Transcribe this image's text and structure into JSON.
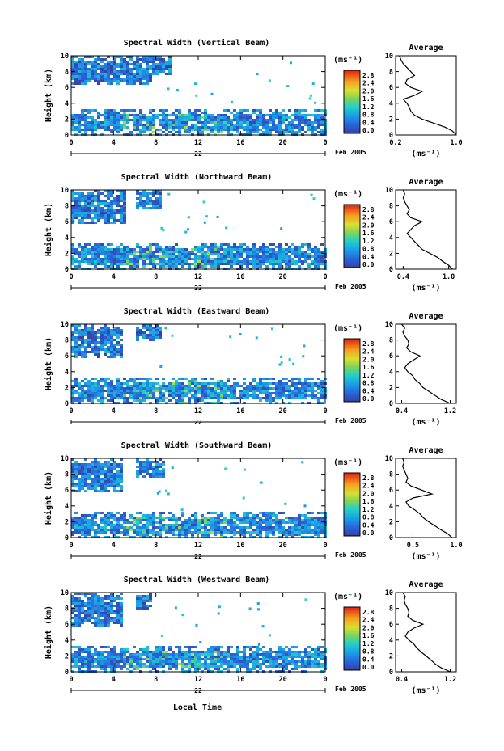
{
  "figure": {
    "common": {
      "ylabel": "Height (km)",
      "unit_label": "(ms⁻¹)",
      "avg_title": "Average",
      "avg_xlabel": "(ms⁻¹)",
      "date_day": "22",
      "date_label": "Feb 2005",
      "xlabel_bottom": "Local Time"
    },
    "colorbar_ticks": [
      "2.8",
      "2.4",
      "2.0",
      "1.6",
      "1.2",
      "0.8",
      "0.4",
      "0.0"
    ]
  },
  "chart_data": [
    {
      "type": "heatmap",
      "title": "Spectral Width (Vertical Beam)",
      "x_ticks": [
        "0",
        "4",
        "8",
        "12",
        "16",
        "20",
        "0"
      ],
      "y_ticks": [
        "0",
        "2",
        "4",
        "6",
        "8",
        "10"
      ],
      "xlim": [
        0,
        24
      ],
      "ylim": [
        0,
        10
      ],
      "colorbar_range": [
        0.0,
        3.0
      ],
      "cloud_layers": [
        {
          "x": [
            0,
            24
          ],
          "y": [
            0,
            3.2
          ],
          "value": 0.6
        },
        {
          "x": [
            0,
            7.5
          ],
          "y": [
            6.2,
            10
          ],
          "value": 0.5
        },
        {
          "x": [
            6.0,
            9.5
          ],
          "y": [
            7.6,
            10
          ],
          "value": 0.5
        }
      ],
      "average_profile": {
        "xlim": [
          0.2,
          1.0
        ],
        "x_ticks": [
          "0.2",
          "1.0"
        ],
        "y_ticks": [
          "0",
          "2",
          "4",
          "6",
          "8",
          "10"
        ],
        "height": [
          0,
          0.5,
          1,
          1.5,
          2,
          2.5,
          3,
          3.5,
          4,
          4.5,
          5,
          5.5,
          6,
          6.5,
          7,
          7.5,
          8,
          8.5,
          9,
          9.5,
          10
        ],
        "width": [
          1.0,
          0.95,
          0.85,
          0.7,
          0.55,
          0.45,
          0.4,
          0.38,
          0.35,
          0.3,
          0.45,
          0.55,
          0.4,
          0.33,
          0.35,
          0.45,
          0.4,
          0.35,
          0.3,
          0.27,
          0.25
        ]
      }
    },
    {
      "type": "heatmap",
      "title": "Spectral Width (Northward Beam)",
      "x_ticks": [
        "0",
        "4",
        "8",
        "12",
        "16",
        "20",
        "0"
      ],
      "y_ticks": [
        "0",
        "2",
        "4",
        "6",
        "8",
        "10"
      ],
      "xlim": [
        0,
        24
      ],
      "ylim": [
        0,
        10
      ],
      "colorbar_range": [
        0.0,
        3.0
      ],
      "cloud_layers": [
        {
          "x": [
            0,
            24
          ],
          "y": [
            0,
            3.2
          ],
          "value": 0.6
        },
        {
          "x": [
            0,
            5.2
          ],
          "y": [
            5.8,
            10
          ],
          "value": 0.5
        },
        {
          "x": [
            6.0,
            8.5
          ],
          "y": [
            7.5,
            10
          ],
          "value": 0.5
        }
      ],
      "average_profile": {
        "xlim": [
          0.3,
          1.1
        ],
        "x_ticks": [
          "0.4",
          "1.0"
        ],
        "y_ticks": [
          "0",
          "2",
          "4",
          "6",
          "8",
          "10"
        ],
        "height": [
          0,
          0.5,
          1,
          1.5,
          2,
          2.5,
          3,
          3.5,
          4,
          4.5,
          5,
          5.5,
          6,
          6.5,
          7,
          7.5,
          8,
          8.5,
          9,
          9.5,
          10
        ],
        "width": [
          1.05,
          1.0,
          0.92,
          0.85,
          0.75,
          0.65,
          0.6,
          0.55,
          0.5,
          0.45,
          0.5,
          0.55,
          0.65,
          0.5,
          0.45,
          0.48,
          0.45,
          0.42,
          0.4,
          0.42,
          0.4
        ]
      }
    },
    {
      "type": "heatmap",
      "title": "Spectral Width (Eastward Beam)",
      "x_ticks": [
        "0",
        "4",
        "8",
        "12",
        "16",
        "20",
        "0"
      ],
      "y_ticks": [
        "0",
        "2",
        "4",
        "6",
        "8",
        "10"
      ],
      "xlim": [
        0,
        24
      ],
      "ylim": [
        0,
        10
      ],
      "colorbar_range": [
        0.0,
        3.0
      ],
      "cloud_layers": [
        {
          "x": [
            0,
            24
          ],
          "y": [
            0,
            3.2
          ],
          "value": 0.6
        },
        {
          "x": [
            0,
            5.0
          ],
          "y": [
            5.6,
            10
          ],
          "value": 0.5
        },
        {
          "x": [
            6.0,
            8.5
          ],
          "y": [
            7.8,
            10
          ],
          "value": 0.5
        }
      ],
      "average_profile": {
        "xlim": [
          0.3,
          1.3
        ],
        "x_ticks": [
          "0.4",
          "1.2"
        ],
        "y_ticks": [
          "0",
          "2",
          "4",
          "6",
          "8",
          "10"
        ],
        "height": [
          0,
          0.5,
          1,
          1.5,
          2,
          2.5,
          3,
          3.5,
          4,
          4.5,
          5,
          5.5,
          6,
          6.5,
          7,
          7.5,
          8,
          8.5,
          9,
          9.5,
          10
        ],
        "width": [
          1.2,
          1.05,
          0.95,
          0.85,
          0.75,
          0.7,
          0.62,
          0.58,
          0.5,
          0.45,
          0.5,
          0.6,
          0.7,
          0.55,
          0.48,
          0.52,
          0.5,
          0.45,
          0.42,
          0.45,
          0.4
        ]
      }
    },
    {
      "type": "heatmap",
      "title": "Spectral Width (Southward Beam)",
      "x_ticks": [
        "0",
        "4",
        "8",
        "12",
        "16",
        "20",
        "0"
      ],
      "y_ticks": [
        "0",
        "2",
        "4",
        "6",
        "8",
        "10"
      ],
      "xlim": [
        0,
        24
      ],
      "ylim": [
        0,
        10
      ],
      "colorbar_range": [
        0.0,
        3.0
      ],
      "cloud_layers": [
        {
          "x": [
            0,
            24
          ],
          "y": [
            0,
            3.2
          ],
          "value": 0.6
        },
        {
          "x": [
            0,
            5.0
          ],
          "y": [
            5.8,
            10
          ],
          "value": 0.5
        },
        {
          "x": [
            6.0,
            9.0
          ],
          "y": [
            7.5,
            10
          ],
          "value": 0.5
        }
      ],
      "average_profile": {
        "xlim": [
          0.3,
          1.0
        ],
        "x_ticks": [
          "0.5",
          "1.0"
        ],
        "y_ticks": [
          "0",
          "2",
          "4",
          "6",
          "8",
          "10"
        ],
        "height": [
          0,
          0.5,
          1,
          1.5,
          2,
          2.5,
          3,
          3.5,
          4,
          4.5,
          5,
          5.5,
          6,
          6.5,
          7,
          7.5,
          8,
          8.5,
          9,
          9.5,
          10
        ],
        "width": [
          0.95,
          0.9,
          0.82,
          0.75,
          0.68,
          0.62,
          0.58,
          0.52,
          0.45,
          0.42,
          0.5,
          0.72,
          0.6,
          0.48,
          0.42,
          0.44,
          0.42,
          0.4,
          0.38,
          0.4,
          0.38
        ]
      }
    },
    {
      "type": "heatmap",
      "title": "Spectral Width (Westward Beam)",
      "x_ticks": [
        "0",
        "4",
        "8",
        "12",
        "16",
        "20",
        "0"
      ],
      "y_ticks": [
        "0",
        "2",
        "4",
        "6",
        "8",
        "10"
      ],
      "xlim": [
        0,
        24
      ],
      "ylim": [
        0,
        10
      ],
      "colorbar_range": [
        0.0,
        3.0
      ],
      "cloud_layers": [
        {
          "x": [
            0,
            24
          ],
          "y": [
            0,
            3.2
          ],
          "value": 0.6
        },
        {
          "x": [
            0,
            4.8
          ],
          "y": [
            5.8,
            10
          ],
          "value": 0.5
        },
        {
          "x": [
            6.0,
            7.5
          ],
          "y": [
            8.0,
            10
          ],
          "value": 0.5
        }
      ],
      "average_profile": {
        "xlim": [
          0.3,
          1.3
        ],
        "x_ticks": [
          "0.4",
          "1.2"
        ],
        "y_ticks": [
          "0",
          "2",
          "4",
          "6",
          "8",
          "10"
        ],
        "height": [
          0,
          0.5,
          1,
          1.5,
          2,
          2.5,
          3,
          3.5,
          4,
          4.5,
          5,
          5.5,
          6,
          6.5,
          7,
          7.5,
          8,
          8.5,
          9,
          9.5,
          10
        ],
        "width": [
          1.2,
          1.05,
          0.95,
          0.88,
          0.8,
          0.72,
          0.65,
          0.6,
          0.52,
          0.46,
          0.5,
          0.6,
          0.75,
          0.58,
          0.5,
          0.52,
          0.5,
          0.46,
          0.44,
          0.46,
          0.42
        ]
      }
    }
  ]
}
